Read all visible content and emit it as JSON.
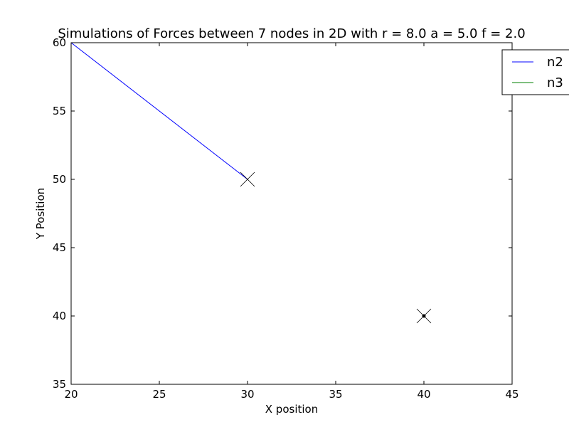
{
  "chart_data": {
    "type": "line",
    "title": "Simulations of Forces between 7 nodes in 2D with r = 8.0 a = 5.0 f = 2.0",
    "xlabel": "X position",
    "ylabel": "Y Position",
    "xlim": [
      20,
      45
    ],
    "ylim": [
      35,
      60
    ],
    "xticks": [
      20,
      25,
      30,
      35,
      40,
      45
    ],
    "yticks": [
      35,
      40,
      45,
      50,
      55,
      60
    ],
    "grid": false,
    "legend_placement": "top-right",
    "series": [
      {
        "name": "n2",
        "color": "#0000ff",
        "x": [
          20,
          30
        ],
        "y": [
          60,
          50
        ]
      },
      {
        "name": "n3",
        "color": "#008000",
        "x": [
          40
        ],
        "y": [
          40
        ]
      }
    ],
    "markers": [
      {
        "shape": "x",
        "x": 30,
        "y": 50
      },
      {
        "shape": "x",
        "x": 40,
        "y": 40
      },
      {
        "shape": "dot",
        "x": 40,
        "y": 40
      }
    ]
  }
}
